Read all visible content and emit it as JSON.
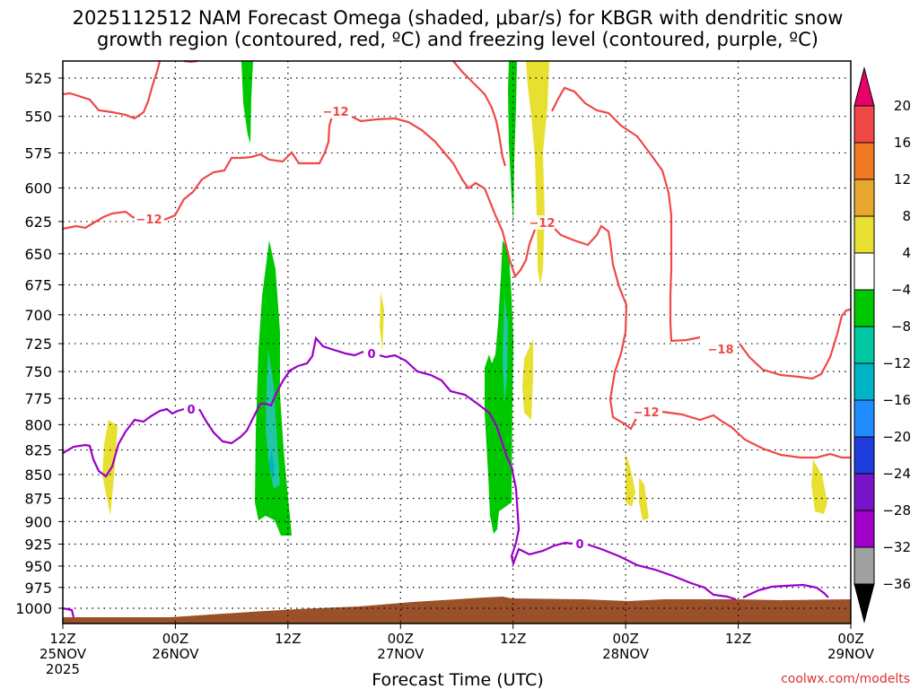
{
  "chart_data": {
    "type": "contour",
    "title_line1": "2025112512 NAM Forecast Omega (shaded, μbar/s) for KBGR with dendritic snow",
    "title_line2": "growth region (contoured, red, ºC) and freezing level (contoured, purple, ºC)",
    "xlabel": "Forecast Time (UTC)",
    "credit": "coolwx.com/modelts",
    "x_ticks": [
      {
        "hour": 0,
        "line1": "12Z",
        "line2": "25NOV",
        "line3": "2025"
      },
      {
        "hour": 12,
        "line1": "00Z",
        "line2": "26NOV",
        "line3": ""
      },
      {
        "hour": 24,
        "line1": "12Z",
        "line2": "",
        "line3": ""
      },
      {
        "hour": 36,
        "line1": "00Z",
        "line2": "27NOV",
        "line3": ""
      },
      {
        "hour": 48,
        "line1": "12Z",
        "line2": "",
        "line3": ""
      },
      {
        "hour": 60,
        "line1": "00Z",
        "line2": "28NOV",
        "line3": ""
      },
      {
        "hour": 72,
        "line1": "12Z",
        "line2": "",
        "line3": ""
      },
      {
        "hour": 84,
        "line1": "00Z",
        "line2": "29NOV",
        "line3": ""
      }
    ],
    "xlim_hours": [
      0,
      84
    ],
    "y_ticks_hpa": [
      "525",
      "550",
      "575",
      "600",
      "625",
      "650",
      "675",
      "700",
      "725",
      "750",
      "775",
      "800",
      "825",
      "850",
      "875",
      "900",
      "925",
      "950",
      "975",
      "1000"
    ],
    "colorbar": {
      "units": "μbar/s",
      "levels": [
        "20",
        "16",
        "12",
        "8",
        "4",
        "−4",
        "−8",
        "−12",
        "−16",
        "−20",
        "−24",
        "−28",
        "−32",
        "−36"
      ],
      "colors": [
        "#e8006a",
        "#f04848",
        "#f07820",
        "#e8a830",
        "#e8e030",
        "#ffffff",
        "#00c800",
        "#00c8a0",
        "#00b4c8",
        "#1e8cff",
        "#1e3cdc",
        "#7814c8",
        "#a000c8",
        "#a0a0a0",
        "#000000"
      ]
    },
    "contour_labels": {
      "dgz_minus12": "−12",
      "dgz_minus18": "−18",
      "freezing_zero": "0"
    },
    "series": [
      {
        "name": "omega",
        "description": "shaded regions"
      },
      {
        "name": "dendritic_growth_region",
        "color": "#f04848"
      },
      {
        "name": "freezing_level",
        "color": "#9a00c8"
      }
    ],
    "terrain_color": "#9a5028"
  }
}
